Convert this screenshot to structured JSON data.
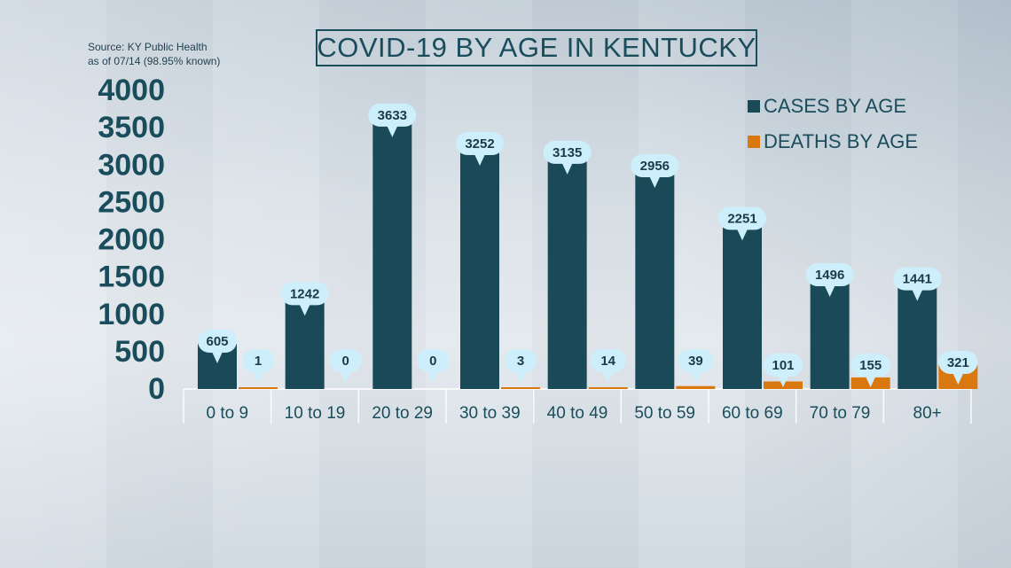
{
  "source": {
    "line1": "Source: KY Public Health",
    "line2": "as of 07/14 (98.95% known)"
  },
  "chart_data": {
    "type": "bar",
    "title": "COVID-19 BY AGE IN KENTUCKY",
    "categories": [
      "0 to 9",
      "10 to 19",
      "20 to 29",
      "30 to 39",
      "40 to 49",
      "50 to 59",
      "60 to 69",
      "70 to 79",
      "80+"
    ],
    "series": [
      {
        "name": "CASES BY AGE",
        "color": "#1a4a58",
        "values": [
          605,
          1242,
          3633,
          3252,
          3135,
          2956,
          2251,
          1496,
          1441
        ]
      },
      {
        "name": "DEATHS BY AGE",
        "color": "#d9780f",
        "values": [
          1,
          0,
          0,
          3,
          14,
          39,
          101,
          155,
          321
        ]
      }
    ],
    "yticks": [
      "4000",
      "3500",
      "3000",
      "2500",
      "2000",
      "1500",
      "1000",
      "500",
      "0"
    ],
    "ylim": [
      0,
      4000
    ],
    "grid": true,
    "legend": "top-right",
    "label_bubble_color": "#cdeffb",
    "axis_text_color": "#1a4d5c"
  }
}
